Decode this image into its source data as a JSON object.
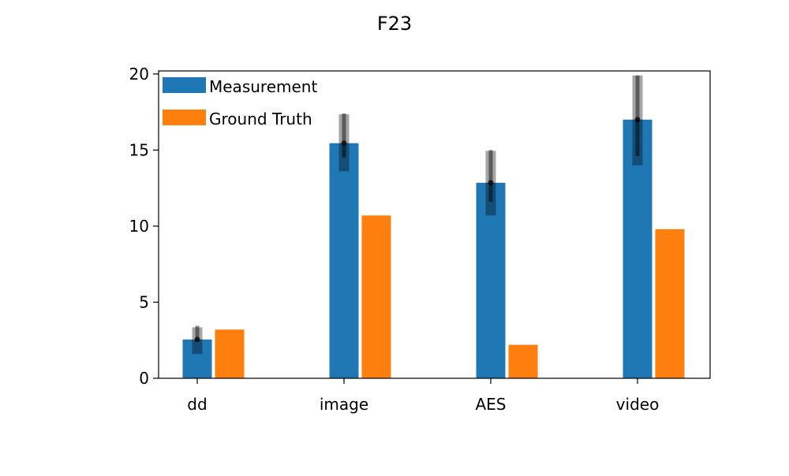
{
  "chart_data": {
    "type": "bar",
    "title": "F23",
    "xlabel": "",
    "ylabel": "",
    "categories": [
      "dd",
      "image",
      "AES",
      "video"
    ],
    "ylim": [
      0,
      20.2
    ],
    "yticks": [
      0,
      5,
      10,
      15,
      20
    ],
    "grid": false,
    "legend_position": "top-left",
    "series": [
      {
        "name": "Measurement",
        "color": "#1f77b4",
        "values": [
          2.55,
          15.45,
          12.85,
          17.0
        ],
        "error_whisker": [
          [
            2.45,
            3.45
          ],
          [
            14.5,
            17.4
          ],
          [
            11.6,
            15.0
          ],
          [
            14.6,
            19.9
          ]
        ],
        "error_box": [
          [
            1.6,
            3.35
          ],
          [
            13.6,
            17.35
          ],
          [
            10.7,
            14.95
          ],
          [
            14.0,
            19.9
          ]
        ]
      },
      {
        "name": "Ground Truth",
        "color": "#ff7f0e",
        "values": [
          3.2,
          10.7,
          2.2,
          9.8
        ]
      }
    ]
  }
}
